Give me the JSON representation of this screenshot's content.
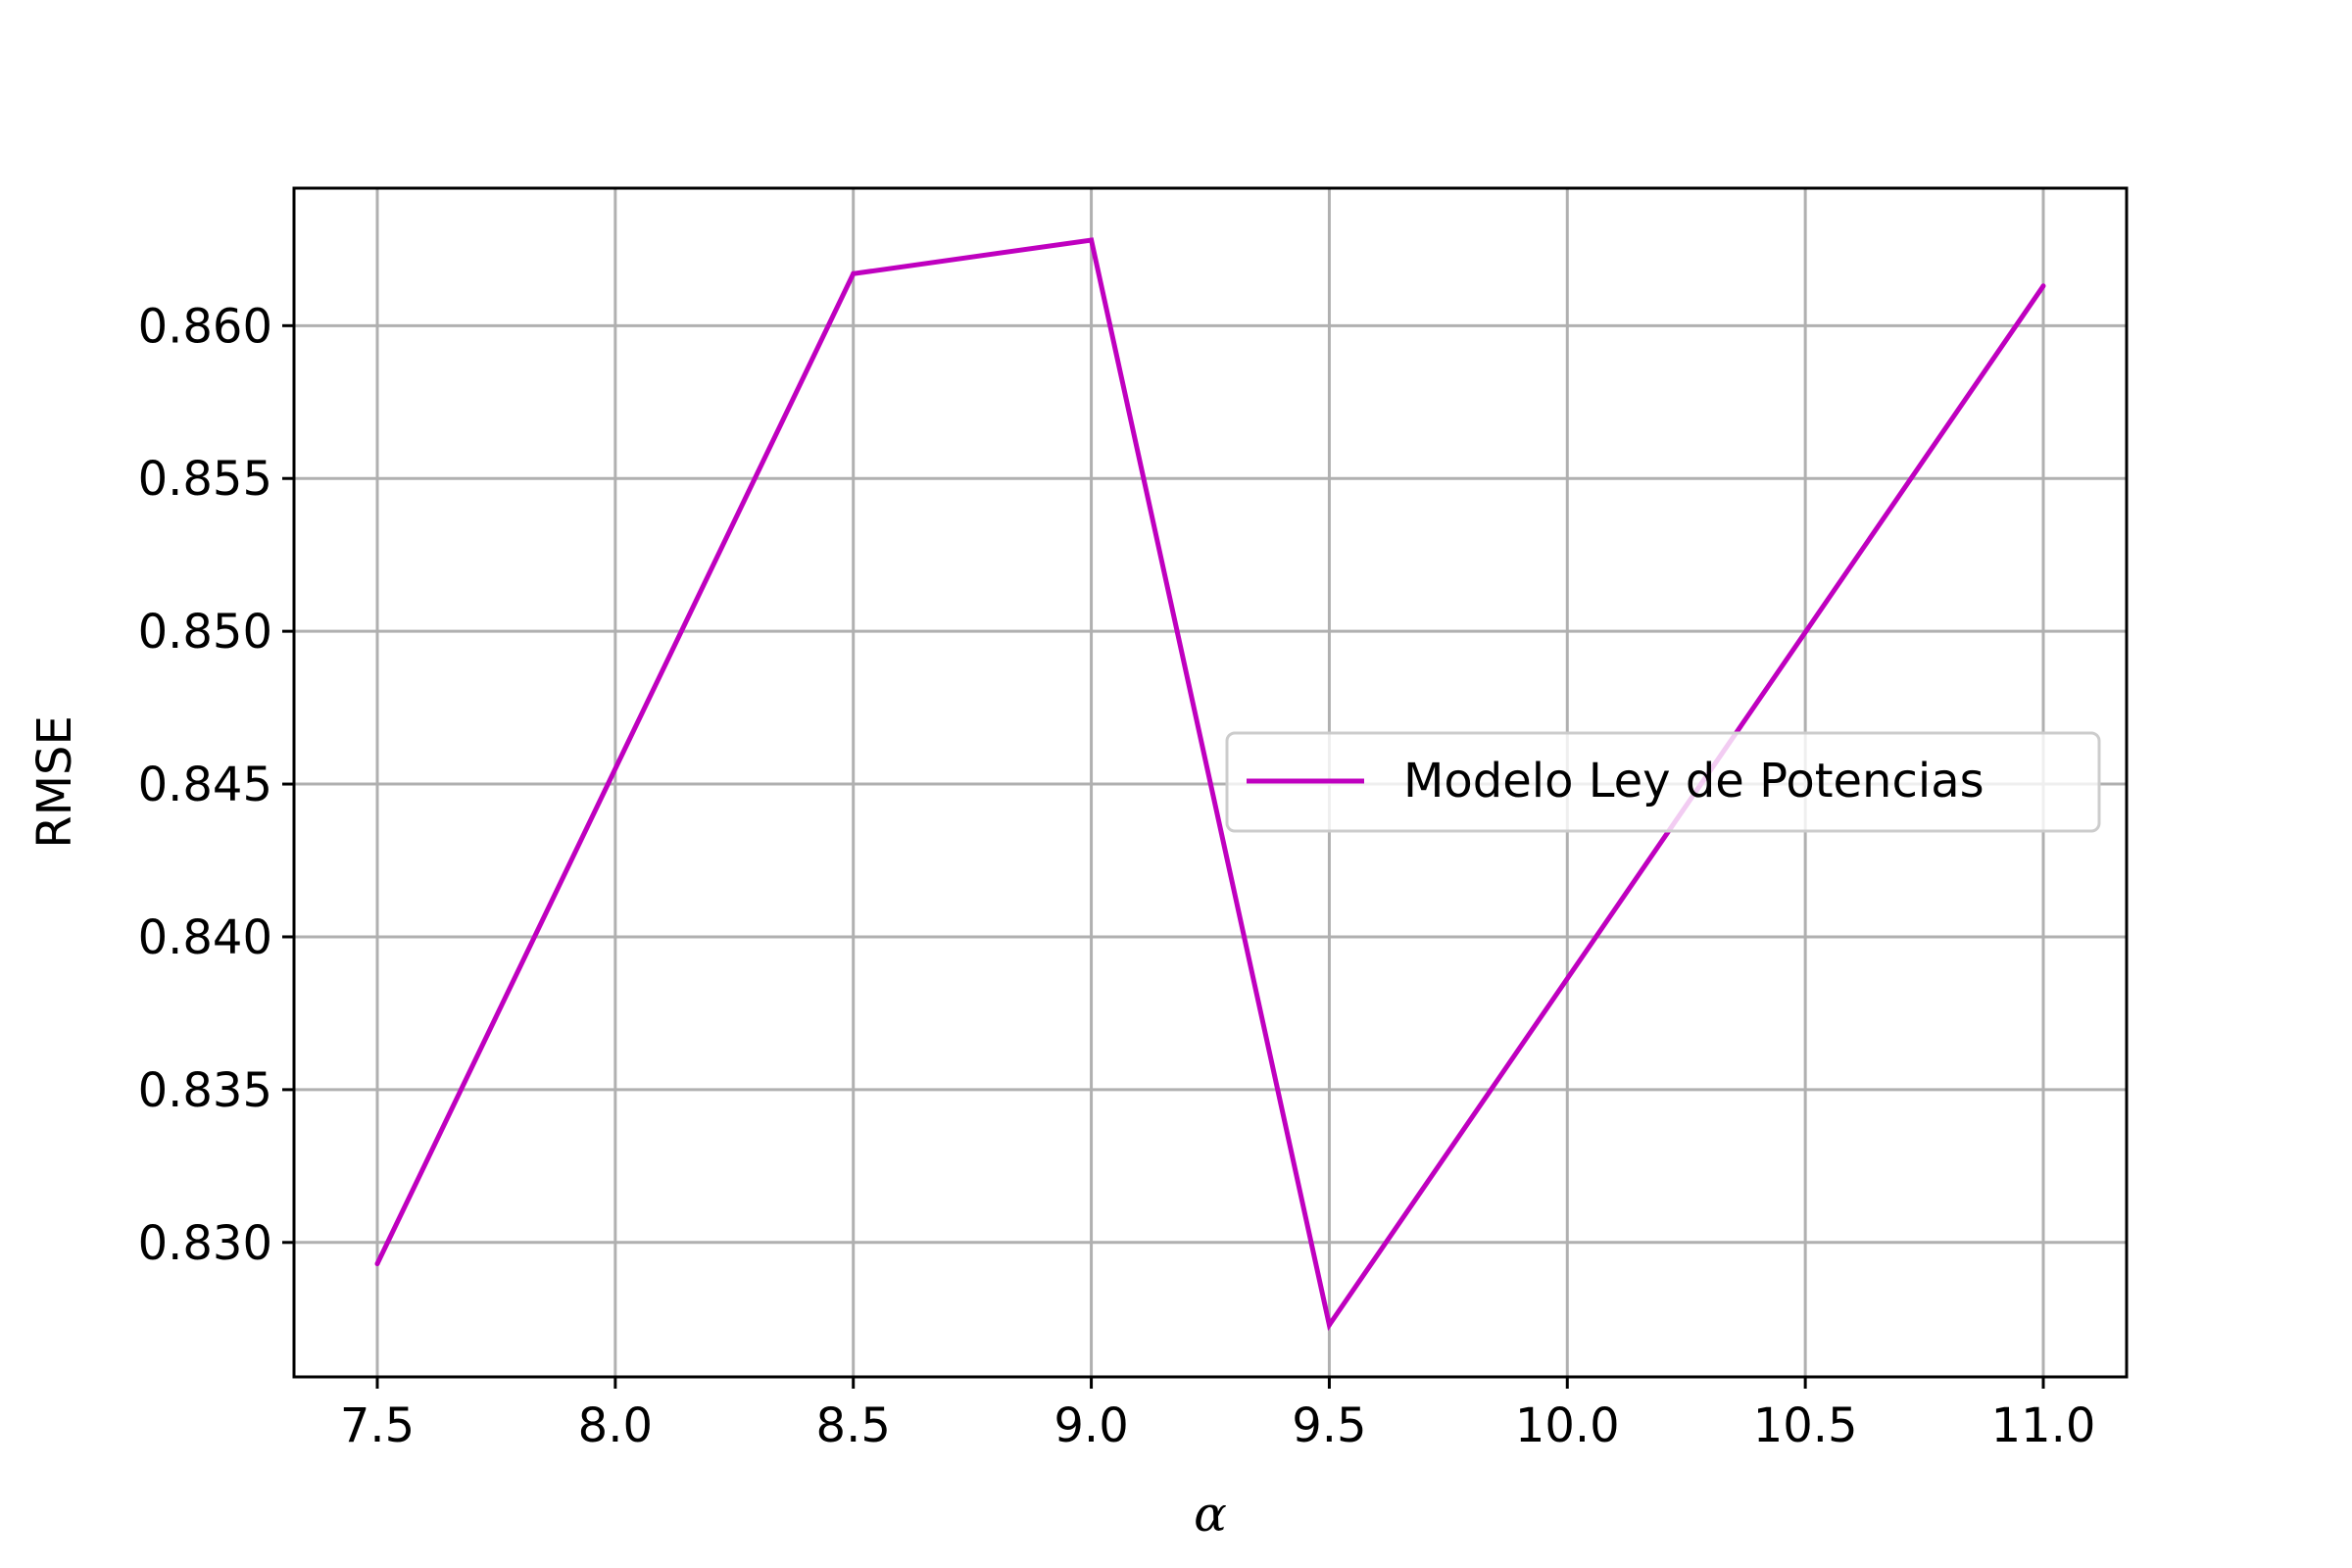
{
  "chart_data": {
    "type": "line",
    "title": "",
    "xlabel": "α",
    "ylabel": "RMSE",
    "x": [
      7.5,
      8.5,
      9.0,
      9.5,
      11.0
    ],
    "series": [
      {
        "name": "Modelo Ley de Potencias",
        "color": "#bf00bf",
        "values": [
          0.8293,
          0.8617,
          0.8628,
          0.8273,
          0.8613
        ]
      }
    ],
    "xlim": [
      7.325,
      11.175
    ],
    "ylim": [
      0.8256,
      0.8645
    ],
    "xticks": [
      7.5,
      8.0,
      8.5,
      9.0,
      9.5,
      10.0,
      10.5,
      11.0
    ],
    "xtick_labels": [
      "7.5",
      "8.0",
      "8.5",
      "9.0",
      "9.5",
      "10.0",
      "10.5",
      "11.0"
    ],
    "yticks": [
      0.83,
      0.835,
      0.84,
      0.845,
      0.85,
      0.855,
      0.86
    ],
    "ytick_labels": [
      "0.830",
      "0.835",
      "0.840",
      "0.845",
      "0.850",
      "0.855",
      "0.860"
    ],
    "grid": true,
    "legend_position": "center-right"
  }
}
